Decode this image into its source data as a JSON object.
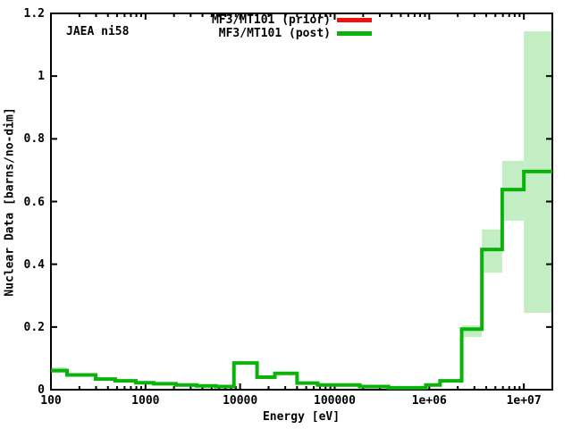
{
  "annotation": {
    "text": "JAEA ni58"
  },
  "legend": {
    "position": "top-right-inside",
    "entries": [
      {
        "label": "MF3/MT101 (prior)",
        "color": "#ee1111",
        "curve_visible": false
      },
      {
        "label": "MF3/MT101 (post)",
        "color": "#0ab20a",
        "curve_visible": true
      }
    ]
  },
  "axes": {
    "x": {
      "label": "Energy [eV]",
      "scale": "log",
      "min": 100,
      "max": 20000000,
      "tick_values": [
        100,
        1000,
        10000,
        100000,
        1000000,
        10000000
      ],
      "tick_labels": [
        "100",
        "1000",
        "10000",
        "100000",
        "1e+06",
        "1e+07"
      ],
      "minor_ticks": "log-decades"
    },
    "y": {
      "label": "Nuclear Data [barns/no-dim]",
      "scale": "linear",
      "min": 0,
      "max": 1.2,
      "tick_values": [
        0,
        0.2,
        0.4,
        0.6,
        0.8,
        1,
        1.2
      ],
      "tick_labels": [
        "0",
        "0.2",
        "0.4",
        "0.6",
        "0.8",
        "1",
        "1.2"
      ]
    }
  },
  "chart_data": {
    "type": "line",
    "line_style": "histogram-steps",
    "title": "",
    "xlabel": "Energy [eV]",
    "ylabel": "Nuclear Data [barns/no-dim]",
    "xlim": [
      100,
      20000000
    ],
    "ylim": [
      0,
      1.2
    ],
    "x_scale": "log",
    "grid": false,
    "annotation": "JAEA ni58",
    "series": [
      {
        "name": "MF3/MT101 (prior)",
        "color": "#ee1111",
        "note_visibility": "legend-only, curve hidden behind post curve"
      },
      {
        "name": "MF3/MT101 (post)",
        "color": "#0ab20a",
        "band_color": "#c3eec3",
        "steps": [
          {
            "e_low": 100,
            "e_high": 148,
            "value": 0.061,
            "band_low": 0.054,
            "band_high": 0.071
          },
          {
            "e_low": 148,
            "e_high": 297,
            "value": 0.047,
            "band_low": null,
            "band_high": null
          },
          {
            "e_low": 297,
            "e_high": 478,
            "value": 0.034,
            "band_low": null,
            "band_high": null
          },
          {
            "e_low": 478,
            "e_high": 790,
            "value": 0.028,
            "band_low": null,
            "band_high": null
          },
          {
            "e_low": 790,
            "e_high": 1220,
            "value": 0.022,
            "band_low": null,
            "band_high": null
          },
          {
            "e_low": 1220,
            "e_high": 2100,
            "value": 0.019,
            "band_low": null,
            "band_high": null
          },
          {
            "e_low": 2100,
            "e_high": 3460,
            "value": 0.015,
            "band_low": null,
            "band_high": null
          },
          {
            "e_low": 3460,
            "e_high": 5560,
            "value": 0.012,
            "band_low": null,
            "band_high": null
          },
          {
            "e_low": 5560,
            "e_high": 8600,
            "value": 0.01,
            "band_low": null,
            "band_high": null
          },
          {
            "e_low": 8600,
            "e_high": 15100,
            "value": 0.085,
            "band_low": null,
            "band_high": null
          },
          {
            "e_low": 15100,
            "e_high": 23300,
            "value": 0.04,
            "band_low": null,
            "band_high": null
          },
          {
            "e_low": 23300,
            "e_high": 40000,
            "value": 0.052,
            "band_low": null,
            "band_high": null
          },
          {
            "e_low": 40000,
            "e_high": 66000,
            "value": 0.021,
            "band_low": null,
            "band_high": null
          },
          {
            "e_low": 66000,
            "e_high": 184000,
            "value": 0.015,
            "band_low": null,
            "band_high": null
          },
          {
            "e_low": 184000,
            "e_high": 370000,
            "value": 0.01,
            "band_low": null,
            "band_high": null
          },
          {
            "e_low": 370000,
            "e_high": 920000,
            "value": 0.006,
            "band_low": null,
            "band_high": null
          },
          {
            "e_low": 920000,
            "e_high": 1300000,
            "value": 0.015,
            "band_low": null,
            "band_high": null
          },
          {
            "e_low": 1300000,
            "e_high": 2200000,
            "value": 0.028,
            "band_low": null,
            "band_high": null
          },
          {
            "e_low": 2200000,
            "e_high": 3600000,
            "value": 0.193,
            "band_low": 0.168,
            "band_high": 0.205
          },
          {
            "e_low": 3600000,
            "e_high": 5900000,
            "value": 0.447,
            "band_low": 0.373,
            "band_high": 0.511
          },
          {
            "e_low": 5900000,
            "e_high": 10000000,
            "value": 0.638,
            "band_low": 0.539,
            "band_high": 0.73
          },
          {
            "e_low": 10000000,
            "e_high": 20000000,
            "value": 0.696,
            "band_low": 0.245,
            "band_high": 1.143
          }
        ]
      }
    ]
  }
}
